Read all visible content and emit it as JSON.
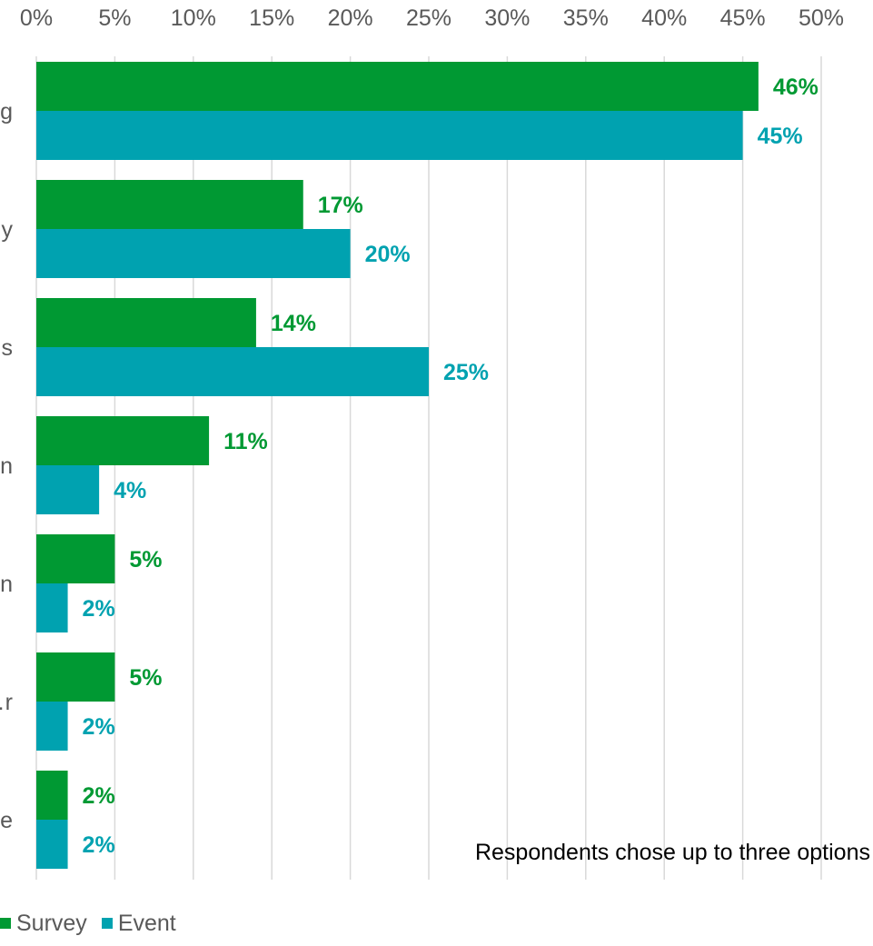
{
  "chart_data": {
    "type": "bar",
    "orientation": "horizontal",
    "categories": [
      "…g",
      "…y",
      "…s",
      "…n",
      "…n",
      "…r",
      "…e"
    ],
    "series": [
      {
        "name": "Survey",
        "color": "#009933",
        "values": [
          46,
          17,
          14,
          11,
          5,
          5,
          2
        ]
      },
      {
        "name": "Event",
        "color": "#00A2B0",
        "values": [
          45,
          20,
          25,
          4,
          2,
          2,
          2
        ]
      }
    ],
    "data_labels": {
      "Survey": [
        "46%",
        "17%",
        "14%",
        "11%",
        "5%",
        "5%",
        "2%"
      ],
      "Event": [
        "45%",
        "20%",
        "25%",
        "4%",
        "2%",
        "2%",
        "2%"
      ]
    },
    "xaxis": {
      "position": "top",
      "ticks": [
        "0%",
        "5%",
        "10%",
        "15%",
        "20%",
        "25%",
        "30%",
        "35%",
        "40%",
        "45%",
        "50%"
      ],
      "xlim": [
        0,
        50
      ]
    },
    "grid": "vertical",
    "annotation": "Respondents chose up to three options",
    "legend": {
      "position": "bottom-left",
      "entries": [
        "Survey",
        "Event"
      ]
    }
  }
}
